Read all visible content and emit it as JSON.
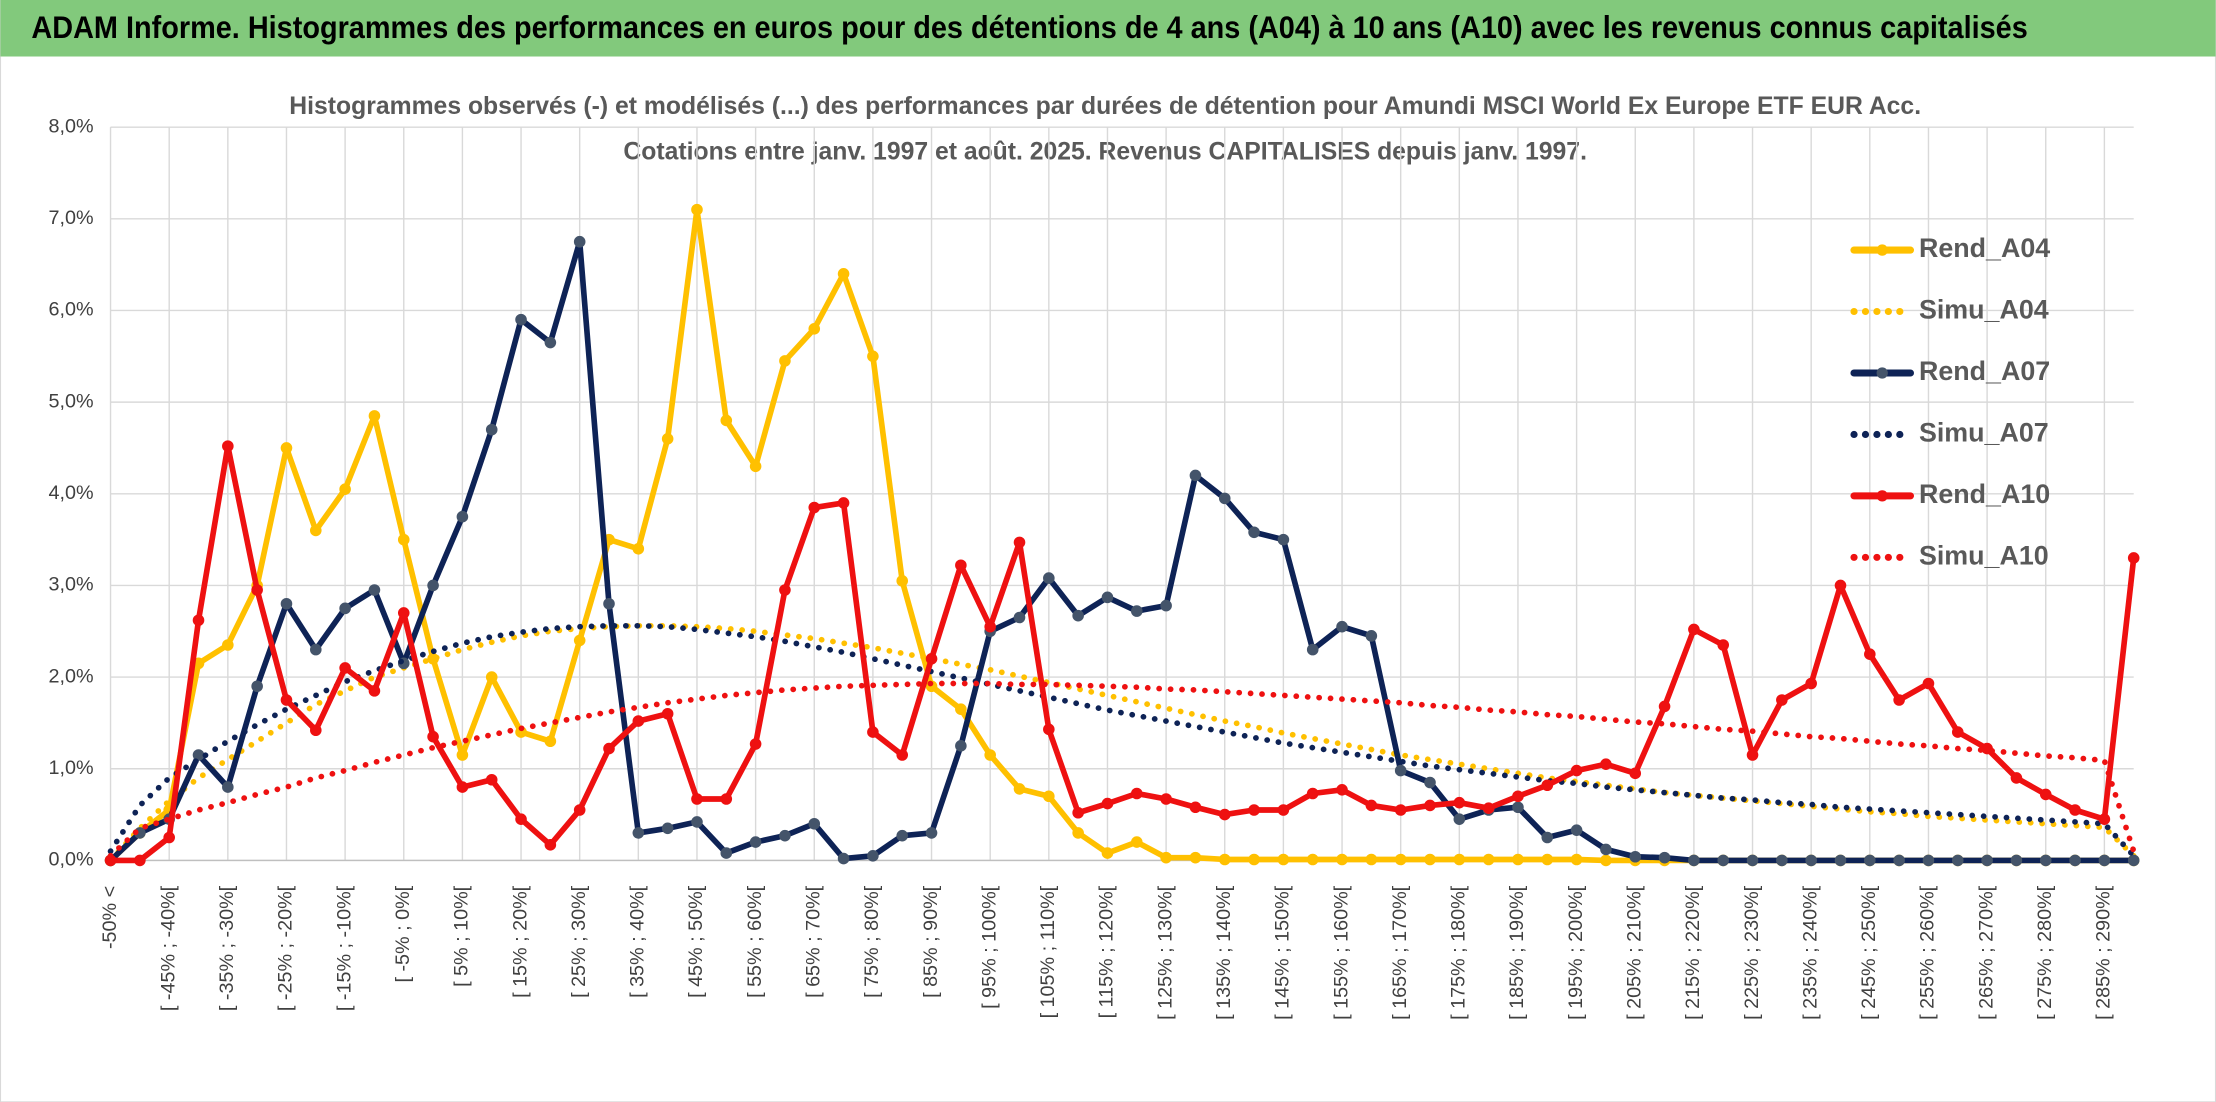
{
  "header": {
    "title": "ADAM Informe. Histogrammes des performances en euros pour des détentions de 4 ans (A04) à 10 ans (A10) avec les revenus connus capitalisés"
  },
  "chart_data": {
    "type": "line",
    "title": "Histogrammes observés (-) et modélisés (...) des performances par durées de détention pour Amundi MSCI World Ex Europe ETF EUR Acc.",
    "subtitle": "Cotations entre janv. 1997 et août. 2025. Revenus CAPITALISES depuis janv. 1997.",
    "categories": [
      "-50% <",
      null,
      "[ -45% ; -40%[",
      null,
      "[ -35% ; -30%[",
      null,
      "[ -25% ; -20%[",
      null,
      "[ -15% ; -10%[",
      null,
      "[ -5% ; 0%[",
      null,
      "[ 5% ; 10%[",
      null,
      "[ 15% ; 20%[",
      null,
      "[ 25% ; 30%[",
      null,
      "[ 35% ; 40%[",
      null,
      "[ 45% ; 50%[",
      null,
      "[ 55% ; 60%[",
      null,
      "[ 65% ; 70%[",
      null,
      "[ 75% ; 80%[",
      null,
      "[ 85% ; 90%[",
      null,
      "[ 95% ; 100%[",
      null,
      "[ 105% ; 110%[",
      null,
      "[ 115% ; 120%[",
      null,
      "[ 125% ; 130%[",
      null,
      "[ 135% ; 140%[",
      null,
      "[ 145% ; 150%[",
      null,
      "[ 155% ; 160%[",
      null,
      "[ 165% ; 170%[",
      null,
      "[ 175% ; 180%[",
      null,
      "[ 185% ; 190%[",
      null,
      "[ 195% ; 200%[",
      null,
      "[ 205% ; 210%[",
      null,
      "[ 215% ; 220%[",
      null,
      "[ 225% ; 230%[",
      null,
      "[ 235% ; 240%[",
      null,
      "[ 245% ; 250%[",
      null,
      "[ 255% ; 260%[",
      null,
      "[ 265% ; 270%[",
      null,
      "[ 275% ; 280%[",
      null,
      "[ 285% ; 290%[",
      null
    ],
    "series": [
      {
        "name": "Rend_A04",
        "color": "#ffc000",
        "style": "solid",
        "marker_color": "#ffc000",
        "values": [
          0,
          0.3,
          0.55,
          2.15,
          2.35,
          3.0,
          4.5,
          3.6,
          4.05,
          4.85,
          3.5,
          2.2,
          1.15,
          2.0,
          1.4,
          1.3,
          2.4,
          3.5,
          3.4,
          4.6,
          7.1,
          4.8,
          4.3,
          5.45,
          5.8,
          6.4,
          5.5,
          3.05,
          1.9,
          1.65,
          1.15,
          0.78,
          0.7,
          0.3,
          0.08,
          0.2,
          0.03,
          0.03,
          0.01,
          0.01,
          0.01,
          0.01,
          0.01,
          0.01,
          0.01,
          0.01,
          0.01,
          0.01,
          0.01,
          0.01,
          0.01,
          0,
          0,
          0,
          0,
          0,
          0,
          0,
          0,
          0,
          0,
          0,
          0,
          0,
          0,
          0,
          0,
          0,
          0,
          0
        ]
      },
      {
        "name": "Simu_A04",
        "color": "#ffc000",
        "style": "dotted",
        "values": [
          0,
          0.35,
          0.65,
          0.9,
          1.1,
          1.3,
          1.5,
          1.7,
          1.85,
          2.0,
          2.1,
          2.2,
          2.3,
          2.38,
          2.45,
          2.5,
          2.53,
          2.55,
          2.56,
          2.56,
          2.55,
          2.53,
          2.5,
          2.46,
          2.42,
          2.37,
          2.32,
          2.26,
          2.2,
          2.14,
          2.08,
          2.01,
          1.94,
          1.87,
          1.8,
          1.73,
          1.66,
          1.59,
          1.52,
          1.46,
          1.39,
          1.33,
          1.27,
          1.21,
          1.15,
          1.1,
          1.05,
          1.0,
          0.95,
          0.9,
          0.86,
          0.82,
          0.78,
          0.74,
          0.71,
          0.68,
          0.65,
          0.62,
          0.59,
          0.56,
          0.53,
          0.51,
          0.48,
          0.46,
          0.44,
          0.42,
          0.4,
          0.38,
          0.36,
          0.05
        ]
      },
      {
        "name": "Rend_A07",
        "color": "#0e2356",
        "style": "solid",
        "marker_color": "#44546a",
        "values": [
          0,
          0.3,
          0.45,
          1.15,
          0.8,
          1.9,
          2.8,
          2.3,
          2.75,
          2.95,
          2.15,
          3.0,
          3.75,
          4.7,
          5.9,
          5.65,
          6.75,
          2.8,
          0.3,
          0.35,
          0.42,
          0.08,
          0.2,
          0.27,
          0.4,
          0.02,
          0.05,
          0.27,
          0.3,
          1.25,
          2.5,
          2.65,
          3.08,
          2.67,
          2.87,
          2.72,
          2.78,
          4.2,
          3.95,
          3.58,
          3.5,
          2.3,
          2.55,
          2.45,
          0.98,
          0.85,
          0.45,
          0.55,
          0.58,
          0.25,
          0.33,
          0.12,
          0.04,
          0.03,
          0,
          0,
          0,
          0,
          0,
          0,
          0,
          0,
          0,
          0,
          0,
          0,
          0,
          0,
          0,
          0
        ]
      },
      {
        "name": "Simu_A07",
        "color": "#0e2356",
        "style": "dotted",
        "values": [
          0.1,
          0.6,
          0.9,
          1.1,
          1.3,
          1.48,
          1.65,
          1.8,
          1.95,
          2.07,
          2.18,
          2.28,
          2.37,
          2.44,
          2.49,
          2.53,
          2.55,
          2.56,
          2.56,
          2.55,
          2.52,
          2.48,
          2.44,
          2.39,
          2.33,
          2.27,
          2.2,
          2.13,
          2.06,
          1.99,
          1.92,
          1.85,
          1.78,
          1.71,
          1.64,
          1.58,
          1.52,
          1.46,
          1.4,
          1.34,
          1.28,
          1.23,
          1.18,
          1.13,
          1.08,
          1.03,
          0.99,
          0.95,
          0.91,
          0.87,
          0.84,
          0.8,
          0.77,
          0.74,
          0.71,
          0.68,
          0.66,
          0.63,
          0.61,
          0.58,
          0.56,
          0.54,
          0.52,
          0.5,
          0.48,
          0.46,
          0.44,
          0.42,
          0.4,
          0.05
        ]
      },
      {
        "name": "Rend_A10",
        "color": "#ee1111",
        "style": "solid",
        "marker_color": "#ee1111",
        "values": [
          0,
          0,
          0.25,
          2.62,
          4.52,
          2.95,
          1.75,
          1.42,
          2.1,
          1.85,
          2.7,
          1.35,
          0.8,
          0.88,
          0.45,
          0.17,
          0.55,
          1.22,
          1.52,
          1.6,
          0.67,
          0.67,
          1.27,
          2.95,
          3.85,
          3.9,
          1.4,
          1.15,
          2.2,
          3.22,
          2.55,
          3.47,
          1.43,
          0.52,
          0.62,
          0.73,
          0.67,
          0.58,
          0.5,
          0.55,
          0.55,
          0.73,
          0.77,
          0.6,
          0.55,
          0.6,
          0.63,
          0.57,
          0.7,
          0.82,
          0.98,
          1.05,
          0.95,
          1.68,
          2.52,
          2.35,
          1.15,
          1.75,
          1.93,
          3.0,
          2.25,
          1.75,
          1.93,
          1.4,
          1.22,
          0.9,
          0.72,
          0.55,
          0.45,
          3.3
        ]
      },
      {
        "name": "Simu_A10",
        "color": "#ee1111",
        "style": "dotted",
        "values": [
          0.05,
          0.35,
          0.45,
          0.55,
          0.63,
          0.72,
          0.8,
          0.9,
          0.98,
          1.07,
          1.15,
          1.23,
          1.3,
          1.37,
          1.44,
          1.5,
          1.56,
          1.62,
          1.67,
          1.72,
          1.76,
          1.8,
          1.83,
          1.86,
          1.88,
          1.9,
          1.91,
          1.92,
          1.93,
          1.93,
          1.93,
          1.92,
          1.92,
          1.91,
          1.9,
          1.89,
          1.87,
          1.86,
          1.84,
          1.82,
          1.8,
          1.78,
          1.76,
          1.74,
          1.72,
          1.69,
          1.67,
          1.64,
          1.62,
          1.59,
          1.57,
          1.54,
          1.51,
          1.49,
          1.46,
          1.43,
          1.41,
          1.38,
          1.35,
          1.33,
          1.3,
          1.27,
          1.25,
          1.22,
          1.2,
          1.17,
          1.14,
          1.12,
          1.09,
          0.1
        ]
      }
    ],
    "ylim": [
      0,
      8
    ],
    "yticks": [
      {
        "value": 0,
        "label": "0,0%"
      },
      {
        "value": 1,
        "label": "1,0%"
      },
      {
        "value": 2,
        "label": "2,0%"
      },
      {
        "value": 3,
        "label": "3,0%"
      },
      {
        "value": 4,
        "label": "4,0%"
      },
      {
        "value": 5,
        "label": "5,0%"
      },
      {
        "value": 6,
        "label": "6,0%"
      },
      {
        "value": 7,
        "label": "7,0%"
      },
      {
        "value": 8,
        "label": "8,0%"
      }
    ],
    "grid": true,
    "legend": "right"
  }
}
